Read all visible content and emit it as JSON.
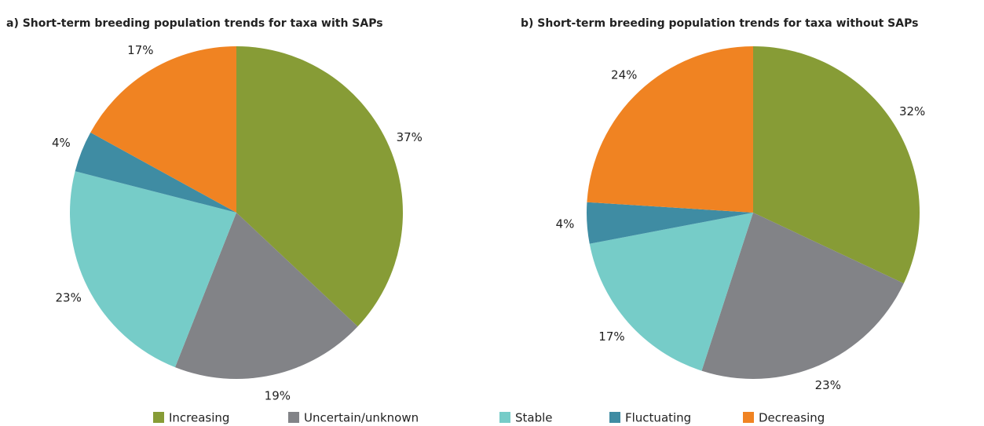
{
  "chart_data": [
    {
      "type": "pie",
      "title": "a) Short-term breeding population trends for taxa with SAPs",
      "categories": [
        "Increasing",
        "Uncertain/unknown",
        "Stable",
        "Fluctuating",
        "Decreasing"
      ],
      "values": [
        37,
        19,
        23,
        4,
        17
      ],
      "value_labels": [
        "37%",
        "19%",
        "23%",
        "4%",
        "17%"
      ],
      "colors": [
        "#879c36",
        "#828387",
        "#76ccc8",
        "#3f8ca3",
        "#f08322"
      ]
    },
    {
      "type": "pie",
      "title": "b) Short-term breeding population trends for taxa without SAPs",
      "categories": [
        "Increasing",
        "Uncertain/unknown",
        "Stable",
        "Fluctuating",
        "Decreasing"
      ],
      "values": [
        32,
        23,
        17,
        4,
        24
      ],
      "value_labels": [
        "32%",
        "23%",
        "17%",
        "4%",
        "24%"
      ],
      "colors": [
        "#879c36",
        "#828387",
        "#76ccc8",
        "#3f8ca3",
        "#f08322"
      ]
    }
  ]
}
